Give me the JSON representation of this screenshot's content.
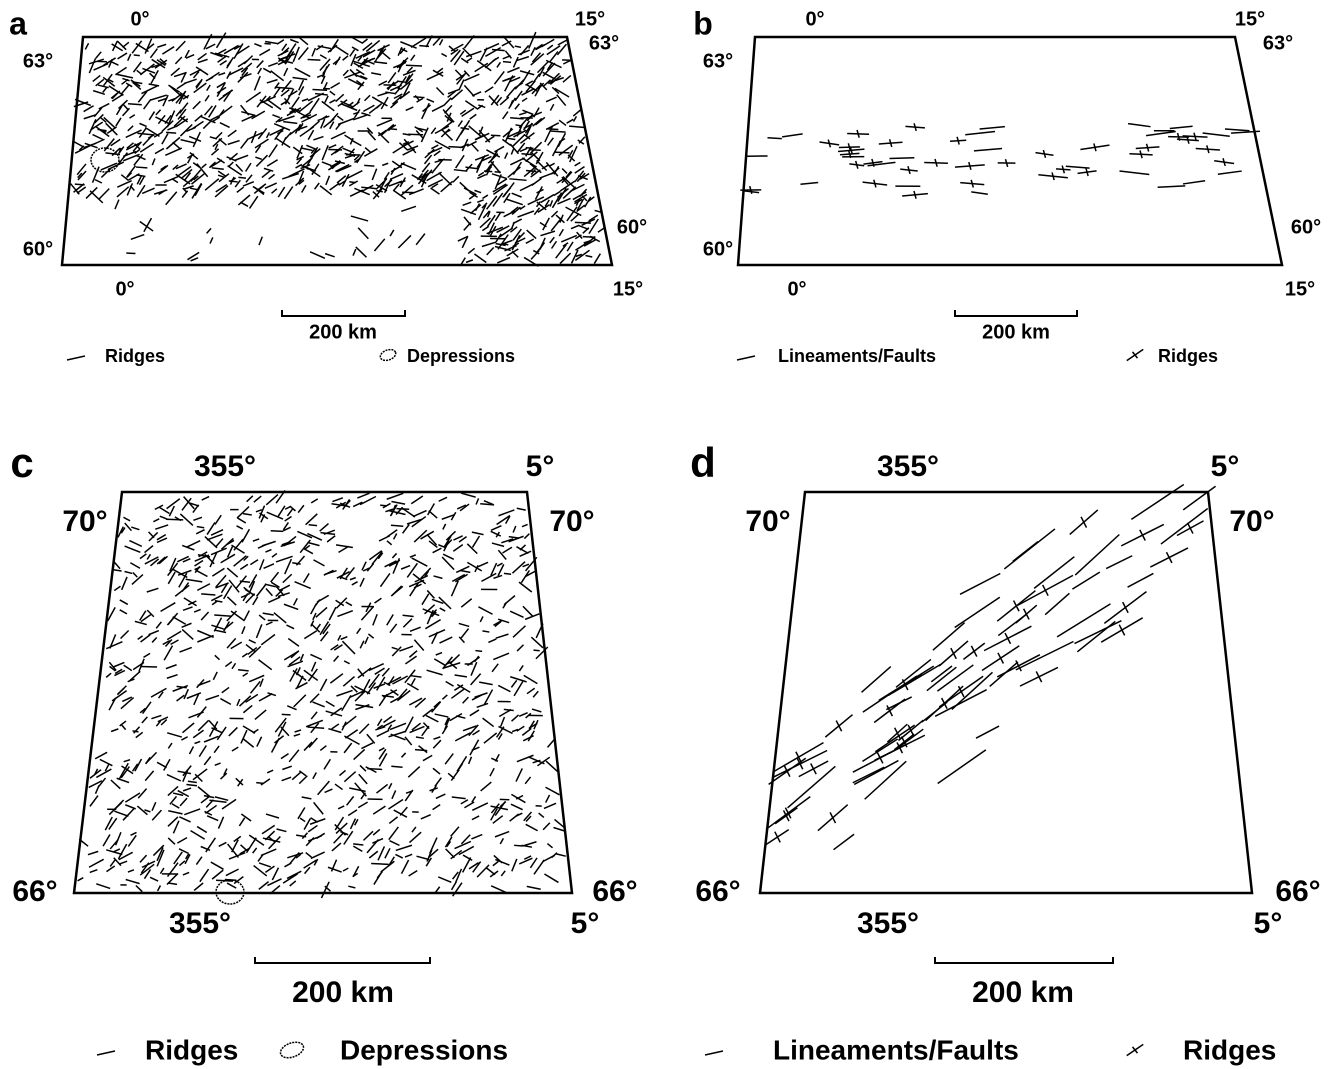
{
  "panels": [
    {
      "letter": "a",
      "top_labels": [
        "0°",
        "15°"
      ],
      "left_labels": [
        "63°",
        "60°"
      ],
      "right_labels": [
        "63°",
        "60°"
      ],
      "bottom_labels": [
        "0°",
        "15°"
      ],
      "scale": "200 km",
      "legend": [
        "Ridges",
        "Depressions"
      ]
    },
    {
      "letter": "b",
      "top_labels": [
        "0°",
        "15°"
      ],
      "left_labels": [
        "63°",
        "60°"
      ],
      "right_labels": [
        "63°",
        "60°"
      ],
      "bottom_labels": [
        "0°",
        "15°"
      ],
      "scale": "200 km",
      "legend": [
        "Lineaments/Faults",
        "Ridges"
      ]
    },
    {
      "letter": "c",
      "top_labels": [
        "355°",
        "5°"
      ],
      "left_labels": [
        "70°",
        "66°"
      ],
      "right_labels": [
        "70°",
        "66°"
      ],
      "bottom_labels": [
        "355°",
        "5°"
      ],
      "scale": "200 km",
      "legend": [
        "Ridges",
        "Depressions"
      ]
    },
    {
      "letter": "d",
      "top_labels": [
        "355°",
        "5°"
      ],
      "left_labels": [
        "70°",
        "66°"
      ],
      "right_labels": [
        "70°",
        "66°"
      ],
      "bottom_labels": [
        "355°",
        "5°"
      ],
      "scale": "200 km",
      "legend": [
        "Lineaments/Faults",
        "Ridges"
      ]
    }
  ]
}
